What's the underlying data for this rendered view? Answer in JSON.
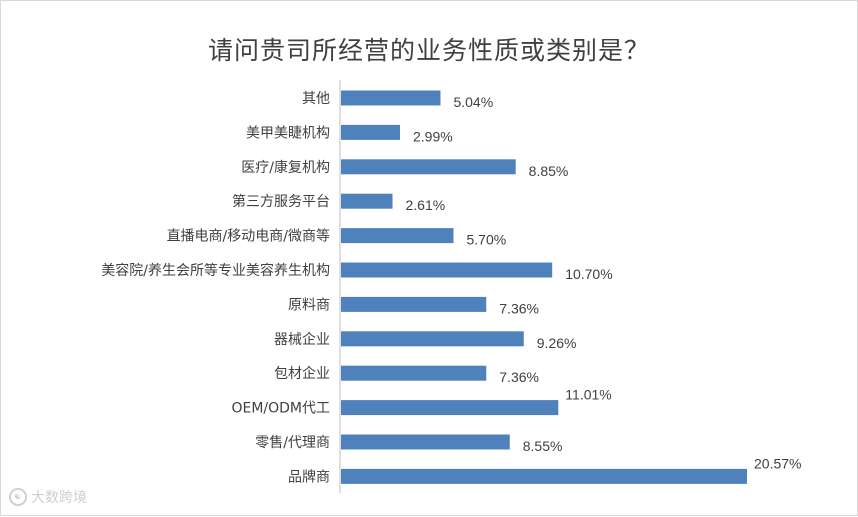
{
  "chart_data": {
    "type": "bar",
    "orientation": "horizontal",
    "title": "请问贵司所经营的业务性质或类别是？",
    "categories": [
      "其他",
      "美甲美睫机构",
      "医疗/康复机构",
      "第三方服务平台",
      "直播电商/移动电商/微商等",
      "美容院/养生会所等专业美容养生机构",
      "原料商",
      "器械企业",
      "包材企业",
      "OEM/ODM代工",
      "零售/代理商",
      "品牌商"
    ],
    "values": [
      5.04,
      2.99,
      8.85,
      2.61,
      5.7,
      10.7,
      7.36,
      9.26,
      7.36,
      11.01,
      8.55,
      20.57
    ],
    "value_labels": [
      "5.04%",
      "2.99%",
      "8.85%",
      "2.61%",
      "5.70%",
      "10.70%",
      "7.36%",
      "9.26%",
      "7.36%",
      "11.01%",
      "8.55%",
      "20.57%"
    ],
    "bar_color": "#4f81bd",
    "xlim": [
      0,
      21
    ],
    "grid": false,
    "legend": "none"
  },
  "watermark": {
    "text": "大数跨境"
  }
}
